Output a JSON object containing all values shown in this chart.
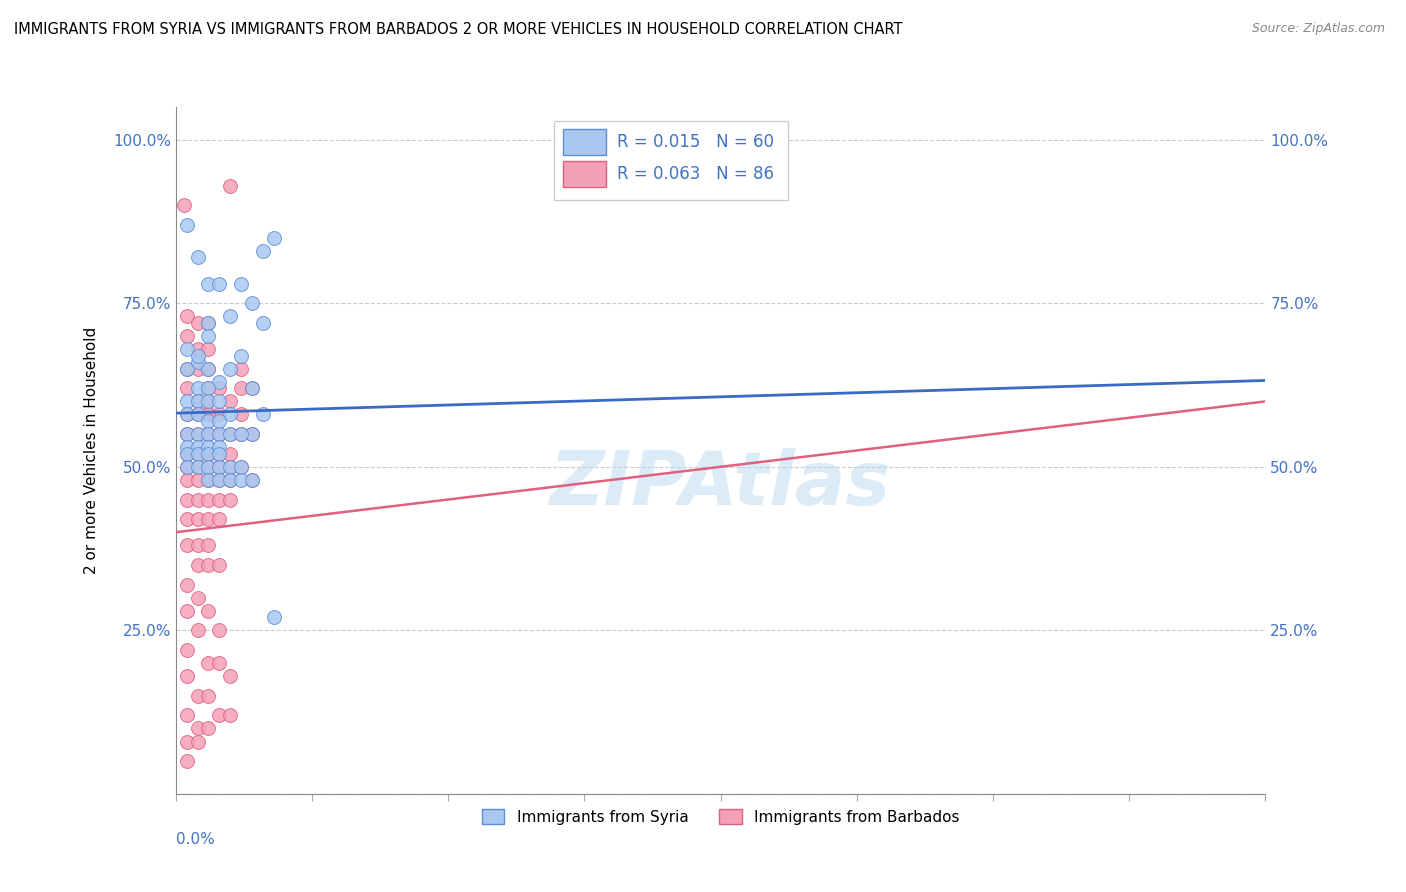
{
  "title": "IMMIGRANTS FROM SYRIA VS IMMIGRANTS FROM BARBADOS 2 OR MORE VEHICLES IN HOUSEHOLD CORRELATION CHART",
  "source": "Source: ZipAtlas.com",
  "ylabel": "2 or more Vehicles in Household",
  "color_syria": "#A8C8F0",
  "color_barbados": "#F4A0B8",
  "edge_syria": "#5B8DD9",
  "edge_barbados": "#E06080",
  "line_color_syria": "#3A6BC4",
  "line_color_barbados": "#E06080",
  "legend_r_syria": "R = 0.015",
  "legend_n_syria": "N = 60",
  "legend_r_barbados": "R = 0.063",
  "legend_n_barbados": "N = 86",
  "xmin": 0.0,
  "xmax": 0.1,
  "ymin": 0.0,
  "ymax": 1.05,
  "watermark": "ZIPAtlas",
  "syria_points": [
    [
      0.001,
      0.87
    ],
    [
      0.002,
      0.82
    ],
    [
      0.001,
      0.68
    ],
    [
      0.003,
      0.78
    ],
    [
      0.004,
      0.78
    ],
    [
      0.003,
      0.72
    ],
    [
      0.003,
      0.7
    ],
    [
      0.001,
      0.65
    ],
    [
      0.002,
      0.66
    ],
    [
      0.002,
      0.67
    ],
    [
      0.003,
      0.65
    ],
    [
      0.004,
      0.63
    ],
    [
      0.002,
      0.62
    ],
    [
      0.003,
      0.62
    ],
    [
      0.001,
      0.6
    ],
    [
      0.002,
      0.6
    ],
    [
      0.003,
      0.6
    ],
    [
      0.004,
      0.6
    ],
    [
      0.005,
      0.58
    ],
    [
      0.001,
      0.58
    ],
    [
      0.002,
      0.58
    ],
    [
      0.003,
      0.57
    ],
    [
      0.004,
      0.57
    ],
    [
      0.001,
      0.55
    ],
    [
      0.002,
      0.55
    ],
    [
      0.003,
      0.55
    ],
    [
      0.004,
      0.55
    ],
    [
      0.005,
      0.55
    ],
    [
      0.001,
      0.53
    ],
    [
      0.002,
      0.53
    ],
    [
      0.003,
      0.53
    ],
    [
      0.004,
      0.53
    ],
    [
      0.001,
      0.52
    ],
    [
      0.002,
      0.52
    ],
    [
      0.003,
      0.52
    ],
    [
      0.004,
      0.52
    ],
    [
      0.001,
      0.5
    ],
    [
      0.002,
      0.5
    ],
    [
      0.003,
      0.5
    ],
    [
      0.004,
      0.5
    ],
    [
      0.005,
      0.5
    ],
    [
      0.006,
      0.5
    ],
    [
      0.003,
      0.48
    ],
    [
      0.004,
      0.48
    ],
    [
      0.005,
      0.48
    ],
    [
      0.006,
      0.48
    ],
    [
      0.007,
      0.62
    ],
    [
      0.007,
      0.55
    ],
    [
      0.006,
      0.67
    ],
    [
      0.008,
      0.58
    ],
    [
      0.007,
      0.75
    ],
    [
      0.008,
      0.72
    ],
    [
      0.008,
      0.83
    ],
    [
      0.009,
      0.85
    ],
    [
      0.009,
      0.27
    ],
    [
      0.005,
      0.73
    ],
    [
      0.006,
      0.78
    ],
    [
      0.007,
      0.48
    ],
    [
      0.005,
      0.65
    ],
    [
      0.006,
      0.55
    ]
  ],
  "barbados_points": [
    [
      0.0008,
      0.9
    ],
    [
      0.005,
      0.93
    ],
    [
      0.001,
      0.73
    ],
    [
      0.001,
      0.7
    ],
    [
      0.002,
      0.68
    ],
    [
      0.002,
      0.72
    ],
    [
      0.003,
      0.68
    ],
    [
      0.003,
      0.72
    ],
    [
      0.001,
      0.65
    ],
    [
      0.002,
      0.65
    ],
    [
      0.003,
      0.65
    ],
    [
      0.001,
      0.62
    ],
    [
      0.002,
      0.6
    ],
    [
      0.003,
      0.6
    ],
    [
      0.001,
      0.58
    ],
    [
      0.002,
      0.58
    ],
    [
      0.003,
      0.58
    ],
    [
      0.004,
      0.58
    ],
    [
      0.004,
      0.62
    ],
    [
      0.001,
      0.55
    ],
    [
      0.002,
      0.55
    ],
    [
      0.003,
      0.55
    ],
    [
      0.004,
      0.55
    ],
    [
      0.005,
      0.55
    ],
    [
      0.001,
      0.52
    ],
    [
      0.002,
      0.52
    ],
    [
      0.003,
      0.52
    ],
    [
      0.004,
      0.52
    ],
    [
      0.005,
      0.52
    ],
    [
      0.001,
      0.5
    ],
    [
      0.002,
      0.5
    ],
    [
      0.003,
      0.5
    ],
    [
      0.004,
      0.5
    ],
    [
      0.005,
      0.5
    ],
    [
      0.006,
      0.55
    ],
    [
      0.001,
      0.48
    ],
    [
      0.002,
      0.48
    ],
    [
      0.003,
      0.48
    ],
    [
      0.004,
      0.48
    ],
    [
      0.005,
      0.48
    ],
    [
      0.001,
      0.45
    ],
    [
      0.002,
      0.45
    ],
    [
      0.003,
      0.45
    ],
    [
      0.004,
      0.45
    ],
    [
      0.005,
      0.45
    ],
    [
      0.001,
      0.42
    ],
    [
      0.002,
      0.42
    ],
    [
      0.003,
      0.42
    ],
    [
      0.004,
      0.42
    ],
    [
      0.001,
      0.38
    ],
    [
      0.002,
      0.38
    ],
    [
      0.003,
      0.38
    ],
    [
      0.002,
      0.35
    ],
    [
      0.003,
      0.35
    ],
    [
      0.004,
      0.35
    ],
    [
      0.001,
      0.32
    ],
    [
      0.002,
      0.3
    ],
    [
      0.001,
      0.28
    ],
    [
      0.002,
      0.25
    ],
    [
      0.001,
      0.22
    ],
    [
      0.001,
      0.18
    ],
    [
      0.002,
      0.15
    ],
    [
      0.003,
      0.15
    ],
    [
      0.001,
      0.12
    ],
    [
      0.002,
      0.1
    ],
    [
      0.001,
      0.08
    ],
    [
      0.002,
      0.08
    ],
    [
      0.001,
      0.05
    ],
    [
      0.003,
      0.28
    ],
    [
      0.004,
      0.25
    ],
    [
      0.003,
      0.2
    ],
    [
      0.004,
      0.2
    ],
    [
      0.005,
      0.18
    ],
    [
      0.003,
      0.1
    ],
    [
      0.004,
      0.12
    ],
    [
      0.005,
      0.12
    ],
    [
      0.006,
      0.5
    ],
    [
      0.006,
      0.62
    ],
    [
      0.006,
      0.65
    ],
    [
      0.007,
      0.48
    ],
    [
      0.007,
      0.55
    ],
    [
      0.007,
      0.62
    ],
    [
      0.005,
      0.6
    ],
    [
      0.006,
      0.58
    ],
    [
      0.003,
      0.58
    ],
    [
      0.003,
      0.62
    ]
  ]
}
